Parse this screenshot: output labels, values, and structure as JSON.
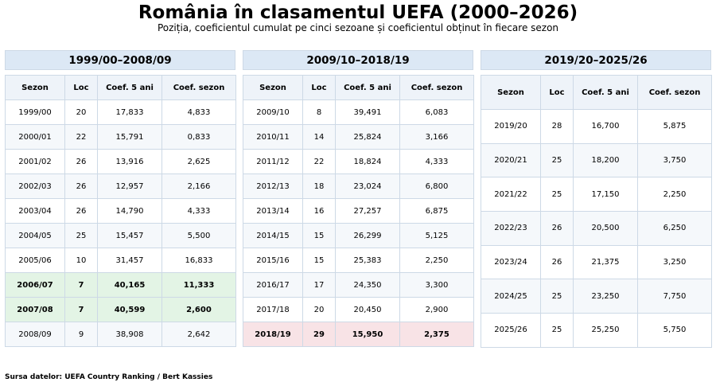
{
  "title": "România în clasamentul UEFA (2000–2026)",
  "subtitle": "Poziția, coeficientul cumulat pe cinci sezoane și coeficientul obținut în fiecare sezon",
  "columns": [
    "Sezon",
    "Loc",
    "Coef. 5 ani",
    "Coef. sezon"
  ],
  "panels": [
    {
      "title": "1999/00–2008/09",
      "rows": [
        {
          "sezon": "1999/00",
          "loc": "20",
          "coef5": "17,833",
          "coefs": "4,833",
          "hl": ""
        },
        {
          "sezon": "2000/01",
          "loc": "22",
          "coef5": "15,791",
          "coefs": "0,833",
          "hl": ""
        },
        {
          "sezon": "2001/02",
          "loc": "26",
          "coef5": "13,916",
          "coefs": "2,625",
          "hl": ""
        },
        {
          "sezon": "2002/03",
          "loc": "26",
          "coef5": "12,957",
          "coefs": "2,166",
          "hl": ""
        },
        {
          "sezon": "2003/04",
          "loc": "26",
          "coef5": "14,790",
          "coefs": "4,333",
          "hl": ""
        },
        {
          "sezon": "2004/05",
          "loc": "25",
          "coef5": "15,457",
          "coefs": "5,500",
          "hl": ""
        },
        {
          "sezon": "2005/06",
          "loc": "10",
          "coef5": "31,457",
          "coefs": "16,833",
          "hl": ""
        },
        {
          "sezon": "2006/07",
          "loc": "7",
          "coef5": "40,165",
          "coefs": "11,333",
          "hl": "green"
        },
        {
          "sezon": "2007/08",
          "loc": "7",
          "coef5": "40,599",
          "coefs": "2,600",
          "hl": "green"
        },
        {
          "sezon": "2008/09",
          "loc": "9",
          "coef5": "38,908",
          "coefs": "2,642",
          "hl": ""
        }
      ]
    },
    {
      "title": "2009/10–2018/19",
      "rows": [
        {
          "sezon": "2009/10",
          "loc": "8",
          "coef5": "39,491",
          "coefs": "6,083",
          "hl": ""
        },
        {
          "sezon": "2010/11",
          "loc": "14",
          "coef5": "25,824",
          "coefs": "3,166",
          "hl": ""
        },
        {
          "sezon": "2011/12",
          "loc": "22",
          "coef5": "18,824",
          "coefs": "4,333",
          "hl": ""
        },
        {
          "sezon": "2012/13",
          "loc": "18",
          "coef5": "23,024",
          "coefs": "6,800",
          "hl": ""
        },
        {
          "sezon": "2013/14",
          "loc": "16",
          "coef5": "27,257",
          "coefs": "6,875",
          "hl": ""
        },
        {
          "sezon": "2014/15",
          "loc": "15",
          "coef5": "26,299",
          "coefs": "5,125",
          "hl": ""
        },
        {
          "sezon": "2015/16",
          "loc": "15",
          "coef5": "25,383",
          "coefs": "2,250",
          "hl": ""
        },
        {
          "sezon": "2016/17",
          "loc": "17",
          "coef5": "24,350",
          "coefs": "3,300",
          "hl": ""
        },
        {
          "sezon": "2017/18",
          "loc": "20",
          "coef5": "20,450",
          "coefs": "2,900",
          "hl": ""
        },
        {
          "sezon": "2018/19",
          "loc": "29",
          "coef5": "15,950",
          "coefs": "2,375",
          "hl": "red"
        }
      ]
    },
    {
      "title": "2019/20–2025/26",
      "rows": [
        {
          "sezon": "2019/20",
          "loc": "28",
          "coef5": "16,700",
          "coefs": "5,875",
          "hl": ""
        },
        {
          "sezon": "2020/21",
          "loc": "25",
          "coef5": "18,200",
          "coefs": "3,750",
          "hl": ""
        },
        {
          "sezon": "2021/22",
          "loc": "25",
          "coef5": "17,150",
          "coefs": "2,250",
          "hl": ""
        },
        {
          "sezon": "2022/23",
          "loc": "26",
          "coef5": "20,500",
          "coefs": "6,250",
          "hl": ""
        },
        {
          "sezon": "2023/24",
          "loc": "26",
          "coef5": "21,375",
          "coefs": "3,250",
          "hl": ""
        },
        {
          "sezon": "2024/25",
          "loc": "25",
          "coef5": "23,250",
          "coefs": "7,750",
          "hl": ""
        },
        {
          "sezon": "2025/26",
          "loc": "25",
          "coef5": "25,250",
          "coefs": "5,750",
          "hl": ""
        }
      ]
    }
  ],
  "source": "Sursa datelor: UEFA Country Ranking / Bert Kassies",
  "colors": {
    "header": "#dce8f5",
    "highlight_green": "#e3f4e5",
    "highlight_red": "#f8e3e6"
  }
}
